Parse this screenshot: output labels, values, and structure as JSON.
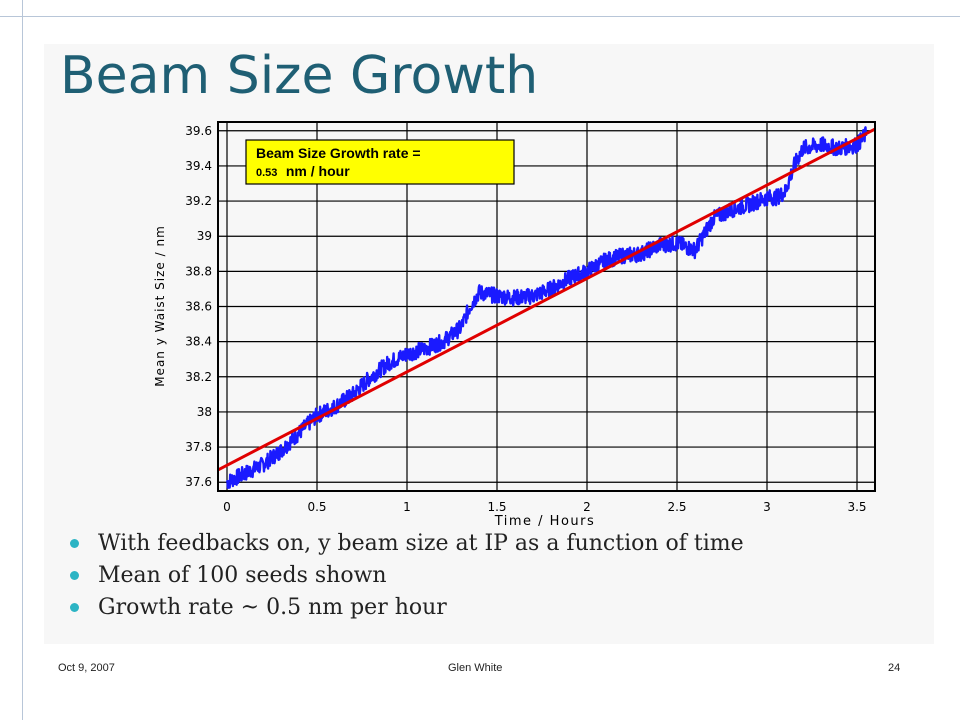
{
  "slide": {
    "title": "Beam Size Growth",
    "bullets": [
      "With feedbacks on, y beam size at IP as a function of time",
      "Mean of 100 seeds shown",
      "Growth rate ~ 0.5 nm per hour"
    ],
    "footer": {
      "date": "Oct 9, 2007",
      "author": "Glen White",
      "page": "24"
    }
  },
  "chart_data": {
    "type": "line",
    "title": "",
    "xlabel": "Time / Hours",
    "ylabel": "Mean y Waist Size / nm",
    "xlim": [
      -0.05,
      3.6
    ],
    "ylim": [
      37.55,
      39.65
    ],
    "xticks": [
      0,
      0.5,
      1,
      1.5,
      2,
      2.5,
      3,
      3.5
    ],
    "xtick_labels": [
      "0",
      "0.5",
      "1",
      "1.5",
      "2",
      "2.5",
      "3",
      "3.5"
    ],
    "yticks": [
      37.6,
      37.8,
      38,
      38.2,
      38.4,
      38.6,
      38.8,
      39,
      39.2,
      39.4,
      39.6
    ],
    "ytick_labels": [
      "37.6",
      "37.8",
      "38",
      "38.2",
      "38.4",
      "38.6",
      "38.8",
      "39",
      "39.2",
      "39.4",
      "39.6"
    ],
    "grid": true,
    "annotation": {
      "line1": "Beam Size Growth rate =",
      "line2_value": "0.53",
      "line2_units": "nm / hour",
      "background": "#ffff00"
    },
    "series": [
      {
        "color": "#1a1aff",
        "x": [
          0,
          0.1,
          0.2,
          0.3,
          0.4,
          0.5,
          0.6,
          0.7,
          0.8,
          0.9,
          1.0,
          1.1,
          1.2,
          1.3,
          1.35,
          1.4,
          1.5,
          1.6,
          1.7,
          1.8,
          1.9,
          2.0,
          2.1,
          2.2,
          2.3,
          2.4,
          2.5,
          2.6,
          2.7,
          2.8,
          2.9,
          3.0,
          3.05,
          3.1,
          3.15,
          3.2,
          3.3,
          3.4,
          3.5,
          3.55
        ],
        "y": [
          37.6,
          37.65,
          37.7,
          37.78,
          37.88,
          37.98,
          38.03,
          38.1,
          38.2,
          38.28,
          38.33,
          38.36,
          38.4,
          38.48,
          38.6,
          38.68,
          38.66,
          38.65,
          38.66,
          38.7,
          38.76,
          38.8,
          38.86,
          38.89,
          38.9,
          38.95,
          38.96,
          38.92,
          39.1,
          39.15,
          39.18,
          39.22,
          39.22,
          39.25,
          39.4,
          39.5,
          39.52,
          39.5,
          39.52,
          39.58
        ]
      },
      {
        "color": "#e00000",
        "x": [
          -0.05,
          3.6
        ],
        "y": [
          37.67,
          39.61
        ]
      }
    ]
  }
}
